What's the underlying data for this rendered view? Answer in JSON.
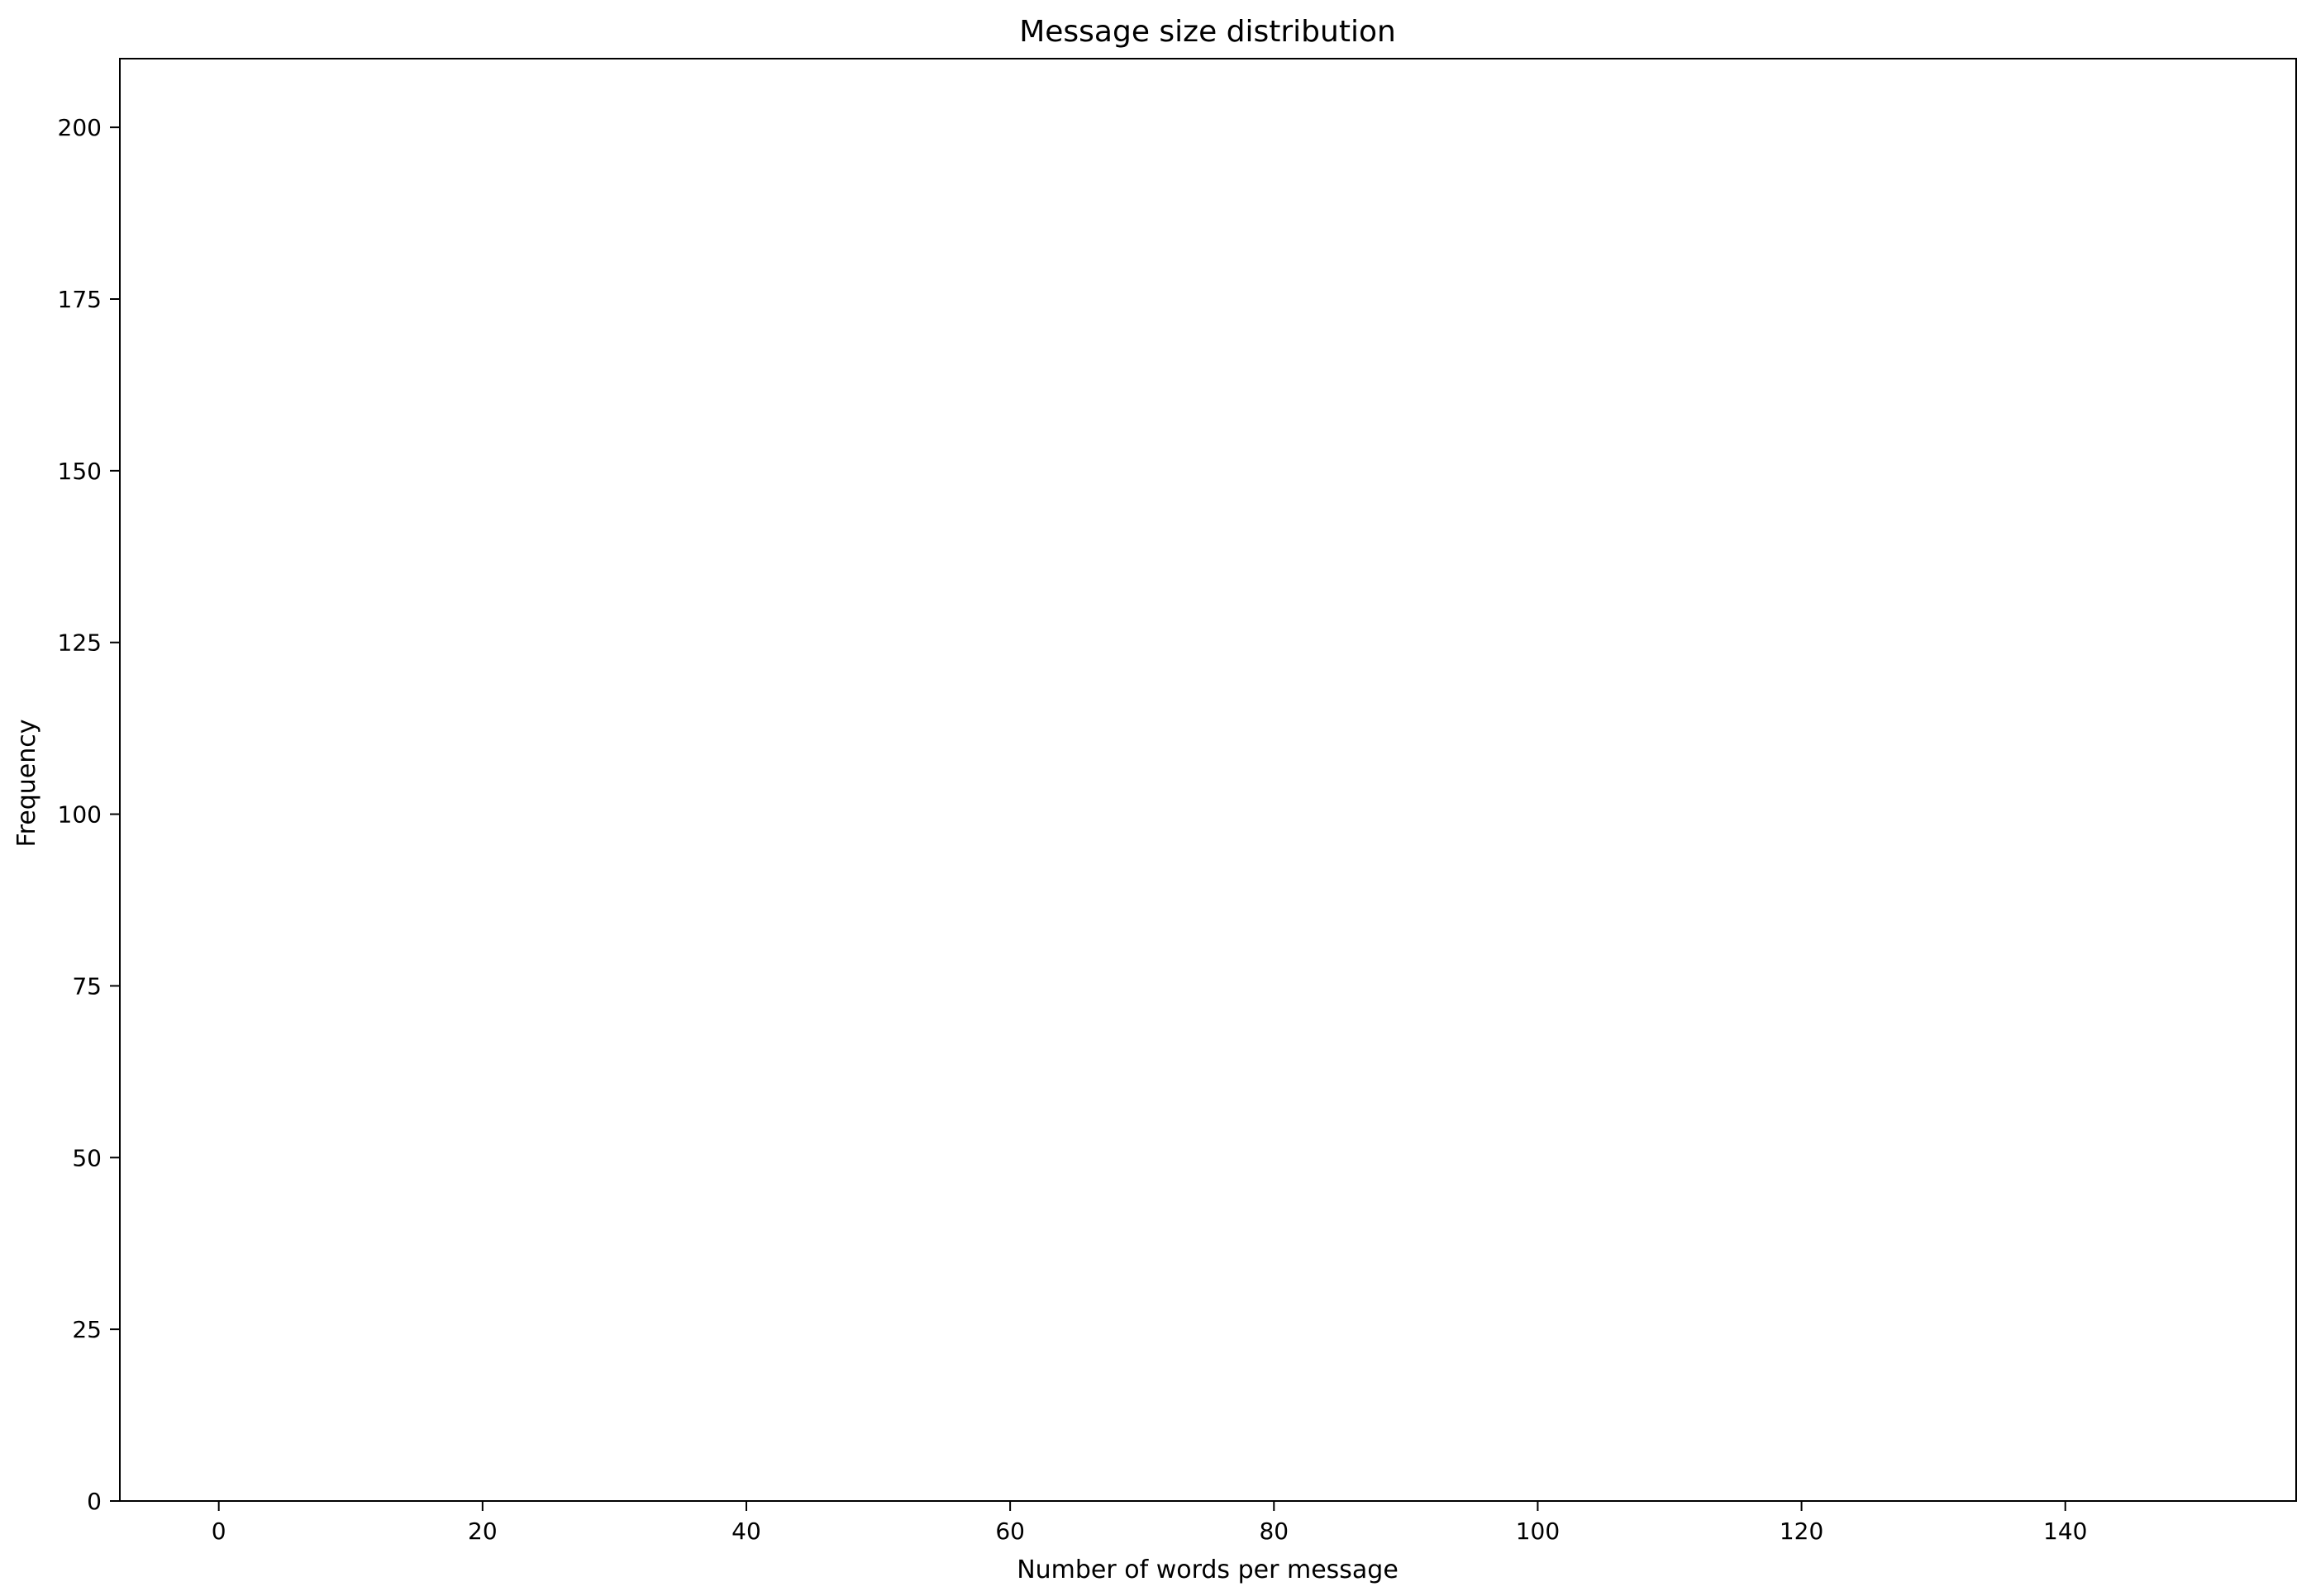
{
  "chart_data": {
    "type": "bar",
    "title": "Message size distribution",
    "xlabel": "Number of words per message",
    "ylabel": "Frequency",
    "xlim": [
      -7.5,
      157.5
    ],
    "ylim": [
      0,
      210
    ],
    "xticks": [
      0,
      20,
      40,
      60,
      80,
      100,
      120,
      140
    ],
    "xtick_labels": [
      "0",
      "20",
      "40",
      "60",
      "80",
      "100",
      "120",
      "140"
    ],
    "yticks": [
      0,
      25,
      50,
      75,
      100,
      125,
      150,
      175,
      200
    ],
    "ytick_labels": [
      "0",
      "25",
      "50",
      "75",
      "100",
      "125",
      "150",
      "175",
      "200"
    ],
    "bin_start": 0,
    "bin_width": 1.5,
    "values": [
      0,
      0,
      0,
      0,
      0,
      0,
      0,
      0,
      0,
      0,
      0,
      0,
      0,
      0,
      0,
      0,
      0,
      0,
      0,
      0,
      0,
      0,
      0,
      0,
      0,
      0,
      0,
      0,
      0,
      0,
      0,
      0,
      0,
      0,
      0,
      0,
      0,
      0,
      0,
      0,
      0,
      0,
      0,
      0,
      0,
      0,
      0,
      0,
      0,
      0,
      0,
      0,
      0,
      0,
      0,
      0,
      0,
      0,
      0,
      0,
      0,
      0,
      0,
      0,
      0,
      0,
      0,
      0,
      0,
      0,
      0,
      0,
      0,
      0,
      0,
      0,
      0,
      0,
      0,
      0,
      0,
      0,
      0,
      0,
      0,
      0,
      0,
      0,
      0,
      0,
      0,
      0,
      0,
      0,
      0,
      0,
      0,
      0,
      0,
      0
    ],
    "grid": false,
    "bar_color": "#1f77b4"
  }
}
